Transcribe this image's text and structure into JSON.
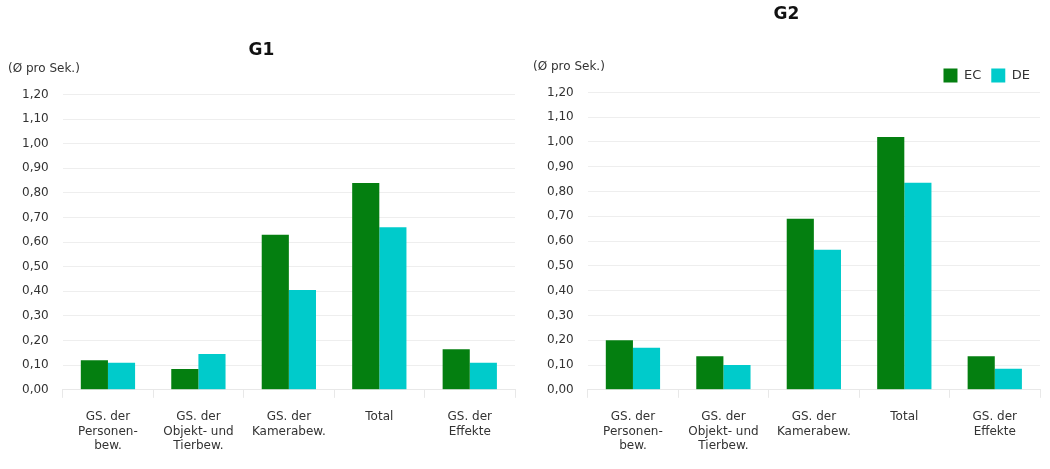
{
  "chart_data": [
    {
      "type": "bar",
      "title": "G1",
      "ylabel": "(Ø pro Sek.)",
      "categories": [
        "GS. der\nPersonen-\nbew.",
        "GS. der\nObjekt- und\nTierbew.",
        "GS. der\nKamerabew.",
        "Total",
        "GS. der\nEffekte"
      ],
      "series": [
        {
          "color": "#047f10",
          "values": [
            0.12,
            0.085,
            0.63,
            0.84,
            0.165
          ]
        },
        {
          "color": "#00cbcb",
          "values": [
            0.11,
            0.145,
            0.405,
            0.66,
            0.11
          ]
        }
      ],
      "ylim": [
        0,
        1.2
      ],
      "yticks": [
        {
          "value": 0,
          "label": "0,00"
        },
        {
          "value": 0.1,
          "label": "0,10"
        },
        {
          "value": 0.2,
          "label": "0,20"
        },
        {
          "value": 0.3,
          "label": "0,30"
        },
        {
          "value": 0.4,
          "label": "0,40"
        },
        {
          "value": 0.5,
          "label": "0,50"
        },
        {
          "value": 0.6,
          "label": "0,60"
        },
        {
          "value": 0.7,
          "label": "0,70"
        },
        {
          "value": 0.8,
          "label": "0,80"
        },
        {
          "value": 0.9,
          "label": "0,90"
        },
        {
          "value": 1.0,
          "label": "1,00"
        },
        {
          "value": 1.1,
          "label": "1,10"
        },
        {
          "value": 1.2,
          "label": "1,20"
        }
      ],
      "grid": "y",
      "legend": false
    },
    {
      "type": "bar",
      "title": "G2",
      "ylabel": "(Ø pro Sek.)",
      "categories": [
        "GS. der\nPersonen-\nbew.",
        "GS. der\nObjekt- und\nTierbew.",
        "GS. der\nKamerabew.",
        "Total",
        "GS. der\nEffekte"
      ],
      "series": [
        {
          "name": "EC",
          "color": "#047f10",
          "values": [
            0.2,
            0.135,
            0.69,
            1.02,
            0.135
          ]
        },
        {
          "name": "DE",
          "color": "#00cbcb",
          "values": [
            0.17,
            0.1,
            0.565,
            0.835,
            0.085
          ]
        }
      ],
      "ylim": [
        0,
        1.2
      ],
      "yticks": [
        {
          "value": 0,
          "label": "0,00"
        },
        {
          "value": 0.1,
          "label": "0,10"
        },
        {
          "value": 0.2,
          "label": "0,20"
        },
        {
          "value": 0.3,
          "label": "0,30"
        },
        {
          "value": 0.4,
          "label": "0,40"
        },
        {
          "value": 0.5,
          "label": "0,50"
        },
        {
          "value": 0.6,
          "label": "0,60"
        },
        {
          "value": 0.7,
          "label": "0,70"
        },
        {
          "value": 0.8,
          "label": "0,80"
        },
        {
          "value": 0.9,
          "label": "0,90"
        },
        {
          "value": 1.0,
          "label": "1,00"
        },
        {
          "value": 1.1,
          "label": "1,10"
        },
        {
          "value": 1.2,
          "label": "1,20"
        }
      ],
      "grid": "y",
      "legend": "top right"
    }
  ]
}
